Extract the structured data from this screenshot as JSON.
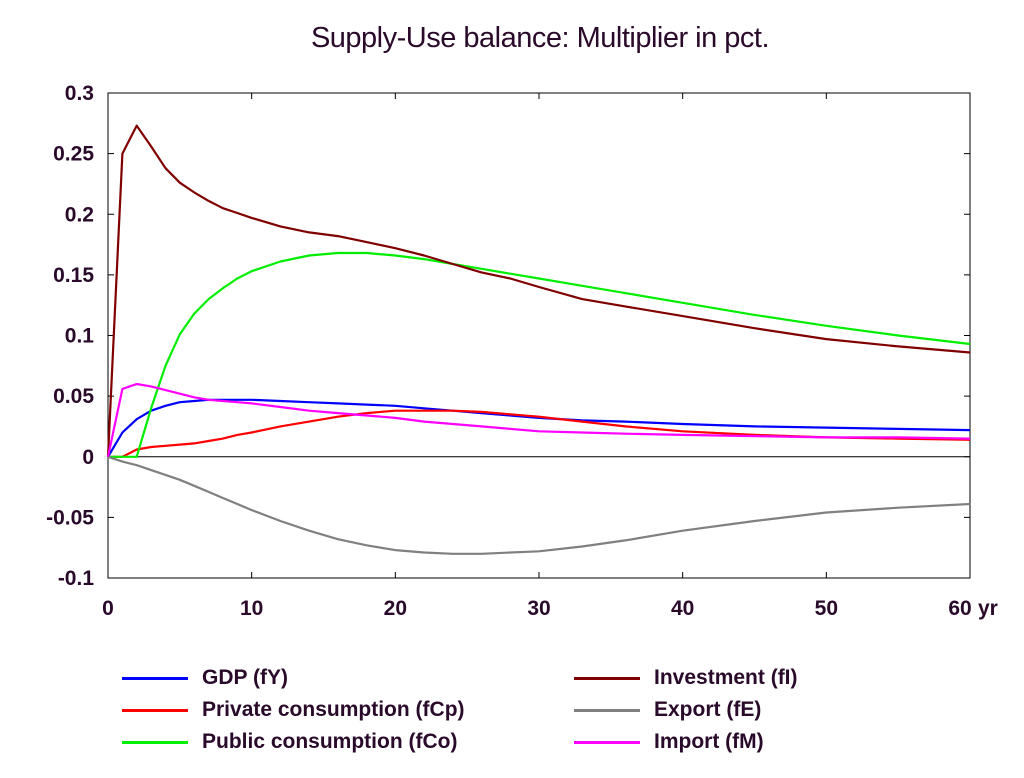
{
  "chart_data": {
    "type": "line",
    "title": "Supply-Use balance: Multiplier in pct.",
    "xlabel": "",
    "ylabel": "",
    "x_unit": "yr",
    "xlim": [
      0,
      60
    ],
    "ylim": [
      -0.1,
      0.3
    ],
    "x_ticks": [
      "0",
      "10",
      "20",
      "30",
      "40",
      "50",
      "60"
    ],
    "y_ticks": [
      "0.3",
      "0.25",
      "0.2",
      "0.15",
      "0.1",
      "0.05",
      "0",
      "-0.05",
      "-0.1"
    ],
    "grid": false,
    "legend_position": "bottom",
    "x": [
      0,
      1,
      2,
      3,
      4,
      5,
      6,
      7,
      8,
      9,
      10,
      12,
      14,
      16,
      18,
      20,
      22,
      24,
      26,
      28,
      30,
      33,
      36,
      40,
      45,
      50,
      55,
      60
    ],
    "series": [
      {
        "name": "GDP (fY)",
        "color": "#0000ff",
        "values": [
          0,
          0.02,
          0.031,
          0.038,
          0.042,
          0.045,
          0.046,
          0.047,
          0.047,
          0.047,
          0.047,
          0.046,
          0.045,
          0.044,
          0.043,
          0.042,
          0.04,
          0.038,
          0.036,
          0.034,
          0.032,
          0.03,
          0.029,
          0.027,
          0.025,
          0.024,
          0.023,
          0.022
        ]
      },
      {
        "name": "Private consumption (fCp)",
        "color": "#ff0000",
        "values": [
          0,
          0,
          0.006,
          0.008,
          0.009,
          0.01,
          0.011,
          0.013,
          0.015,
          0.018,
          0.02,
          0.025,
          0.029,
          0.033,
          0.036,
          0.038,
          0.038,
          0.038,
          0.037,
          0.035,
          0.033,
          0.029,
          0.025,
          0.021,
          0.018,
          0.016,
          0.015,
          0.014
        ]
      },
      {
        "name": "Public consumption (fCo)",
        "color": "#00ee00",
        "values": [
          0,
          0,
          0,
          0.04,
          0.075,
          0.101,
          0.118,
          0.13,
          0.139,
          0.147,
          0.153,
          0.161,
          0.166,
          0.168,
          0.168,
          0.166,
          0.163,
          0.159,
          0.155,
          0.151,
          0.147,
          0.141,
          0.135,
          0.127,
          0.117,
          0.108,
          0.1,
          0.093
        ]
      },
      {
        "name": "Investment (fI)",
        "color": "#800000",
        "values": [
          0,
          0.25,
          0.273,
          0.256,
          0.238,
          0.226,
          0.218,
          0.211,
          0.205,
          0.201,
          0.197,
          0.19,
          0.185,
          0.182,
          0.177,
          0.172,
          0.166,
          0.159,
          0.152,
          0.147,
          0.14,
          0.13,
          0.124,
          0.116,
          0.106,
          0.097,
          0.091,
          0.086
        ]
      },
      {
        "name": "Export (fE)",
        "color": "#808080",
        "values": [
          0,
          -0.004,
          -0.007,
          -0.011,
          -0.015,
          -0.019,
          -0.024,
          -0.029,
          -0.034,
          -0.039,
          -0.044,
          -0.053,
          -0.061,
          -0.068,
          -0.073,
          -0.077,
          -0.079,
          -0.08,
          -0.08,
          -0.079,
          -0.078,
          -0.074,
          -0.069,
          -0.061,
          -0.053,
          -0.046,
          -0.042,
          -0.039
        ]
      },
      {
        "name": "Import (fM)",
        "color": "#ff00ff",
        "values": [
          0,
          0.056,
          0.06,
          0.058,
          0.055,
          0.052,
          0.049,
          0.047,
          0.046,
          0.045,
          0.044,
          0.041,
          0.038,
          0.036,
          0.034,
          0.032,
          0.029,
          0.027,
          0.025,
          0.023,
          0.021,
          0.02,
          0.019,
          0.018,
          0.017,
          0.016,
          0.016,
          0.015
        ]
      }
    ]
  }
}
